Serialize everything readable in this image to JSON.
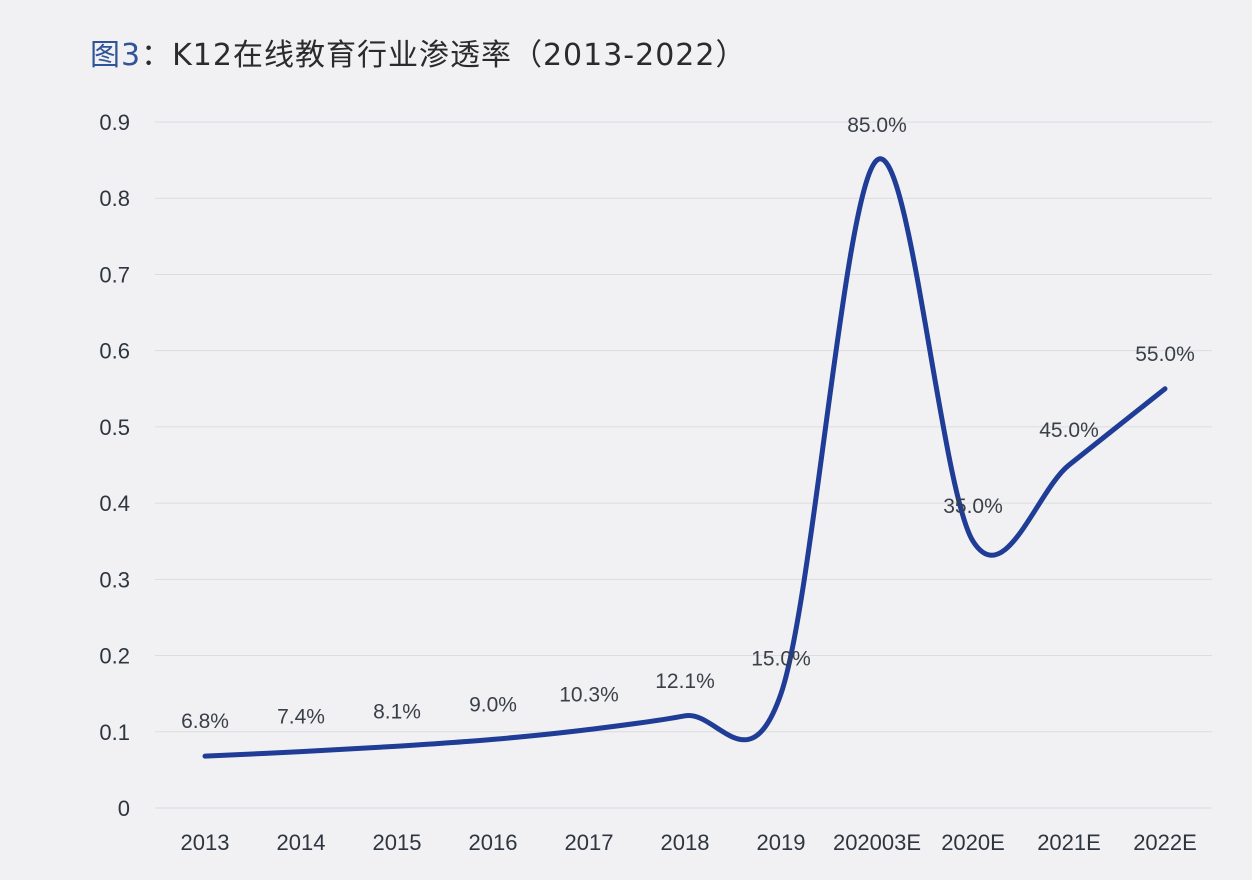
{
  "title": {
    "prefix": "图3",
    "text": "：K12在线教育行业渗透率（2013-2022）"
  },
  "colors": {
    "line": "#1f3c96",
    "grid": "#dcdce0",
    "background": "#f1f1f3",
    "title_prefix": "#2f5597"
  },
  "chart_data": {
    "type": "line",
    "categories": [
      "2013",
      "2014",
      "2015",
      "2016",
      "2017",
      "2018",
      "2019",
      "202003E",
      "2020E",
      "2021E",
      "2022E"
    ],
    "series": [
      {
        "values": [
          0.068,
          0.074,
          0.081,
          0.09,
          0.103,
          0.121,
          0.15,
          0.85,
          0.35,
          0.45,
          0.55
        ],
        "labels": [
          "6.8%",
          "7.4%",
          "8.1%",
          "9.0%",
          "10.3%",
          "12.1%",
          "15.0%",
          "85.0%",
          "35.0%",
          "45.0%",
          "55.0%"
        ]
      }
    ],
    "y_ticks": [
      "0",
      "0.1",
      "0.2",
      "0.3",
      "0.4",
      "0.5",
      "0.6",
      "0.7",
      "0.8",
      "0.9"
    ],
    "ylim": [
      0,
      0.9
    ],
    "grid": true,
    "legend": "none",
    "smooth": true
  }
}
